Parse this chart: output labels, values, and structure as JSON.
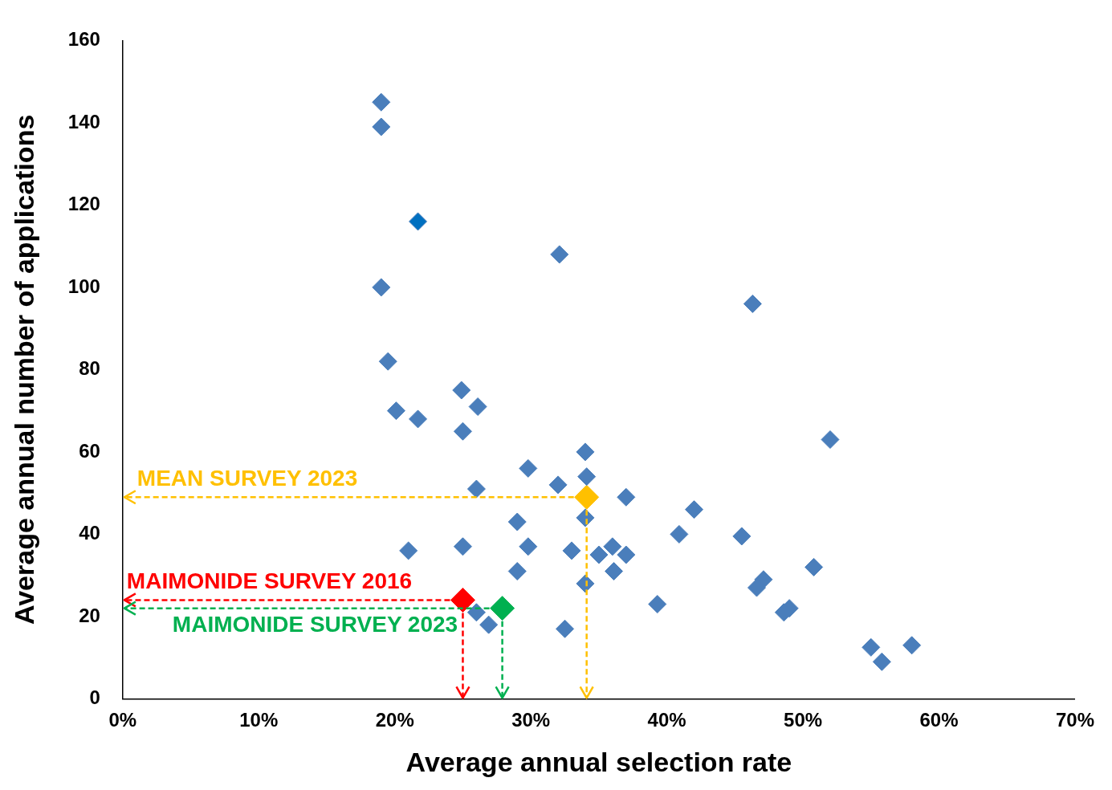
{
  "chart_data": {
    "type": "scatter",
    "xlabel": "Average annual selection rate",
    "ylabel": "Average annual number of applications",
    "marker": "diamond",
    "xlim": [
      0,
      70
    ],
    "xticks": [
      {
        "value": 0,
        "label": "0%"
      },
      {
        "value": 10,
        "label": "10%"
      },
      {
        "value": 20,
        "label": "20%"
      },
      {
        "value": 30,
        "label": "30%"
      },
      {
        "value": 40,
        "label": "40%"
      },
      {
        "value": 50,
        "label": "50%"
      },
      {
        "value": 60,
        "label": "60%"
      },
      {
        "value": 70,
        "label": "70%"
      }
    ],
    "ylim": [
      0,
      160
    ],
    "yticks": [
      0,
      20,
      40,
      60,
      80,
      100,
      120,
      140,
      160
    ],
    "series": [
      {
        "color": "#4a7ebb",
        "colors": [
          "#4a7ebb",
          "#4a7ebb",
          "#0070c0",
          "#4a7ebb",
          "#4a7ebb",
          "#4a7ebb",
          "#4a7ebb",
          "#4a7ebb",
          "#4a7ebb",
          "#4a7ebb",
          "#4a7ebb",
          "#4a7ebb",
          "#4a7ebb",
          "#4a7ebb",
          "#4a7ebb",
          "#4a7ebb",
          "#4a7ebb",
          "#4a7ebb",
          "#4a7ebb",
          "#4a7ebb",
          "#4a7ebb",
          "#4a7ebb",
          "#4a7ebb",
          "#4a7ebb",
          "#4a7ebb",
          "#4a7ebb",
          "#4a7ebb",
          "#4a7ebb",
          "#4a7ebb",
          "#4a7ebb",
          "#4a7ebb",
          "#4a7ebb",
          "#4a7ebb",
          "#4a7ebb",
          "#4a7ebb",
          "#4a7ebb",
          "#4a7ebb",
          "#4a7ebb",
          "#4a7ebb",
          "#4a7ebb",
          "#4a7ebb",
          "#4a7ebb",
          "#4a7ebb",
          "#4a7ebb",
          "#4a7ebb",
          "#4a7ebb"
        ],
        "x": [
          19,
          19,
          21.7,
          32.1,
          19,
          46.3,
          19.5,
          24.9,
          26.1,
          20.1,
          21.7,
          25,
          52,
          34,
          29.8,
          34.1,
          32,
          26,
          37,
          42,
          34,
          29,
          40.9,
          45.5,
          21,
          25,
          29.8,
          33,
          36,
          35,
          37,
          36.1,
          29,
          50.8,
          47.1,
          46.6,
          34,
          39.3,
          49,
          48.6,
          26,
          26.9,
          32.5,
          55,
          58,
          55.8
        ],
        "values": [
          145,
          139,
          116,
          108,
          100,
          96,
          82,
          75,
          71,
          70,
          68,
          65,
          63,
          60,
          56,
          54,
          52,
          51,
          49,
          46,
          44,
          43,
          40,
          39.5,
          36,
          37,
          37,
          36,
          37,
          35,
          35,
          31,
          31,
          32,
          29,
          27,
          28,
          23,
          22,
          21,
          21,
          18,
          17,
          12.5,
          13,
          9
        ]
      },
      {
        "color": "#ffc000",
        "x": [
          34.1
        ],
        "values": [
          49
        ]
      },
      {
        "color": "#ff0000",
        "x": [
          25
        ],
        "values": [
          24
        ]
      },
      {
        "color": "#00b050",
        "x": [
          27.9
        ],
        "values": [
          22
        ]
      }
    ],
    "annotations": [
      "MEAN SURVEY 2023",
      {
        "text": "MAIMONIDE SURVEY 2016",
        "x": 25,
        "y": 24
      },
      {
        "text": "MAIMONIDE SURVEY 2023",
        "x": 27.9,
        "y": 22
      }
    ]
  }
}
